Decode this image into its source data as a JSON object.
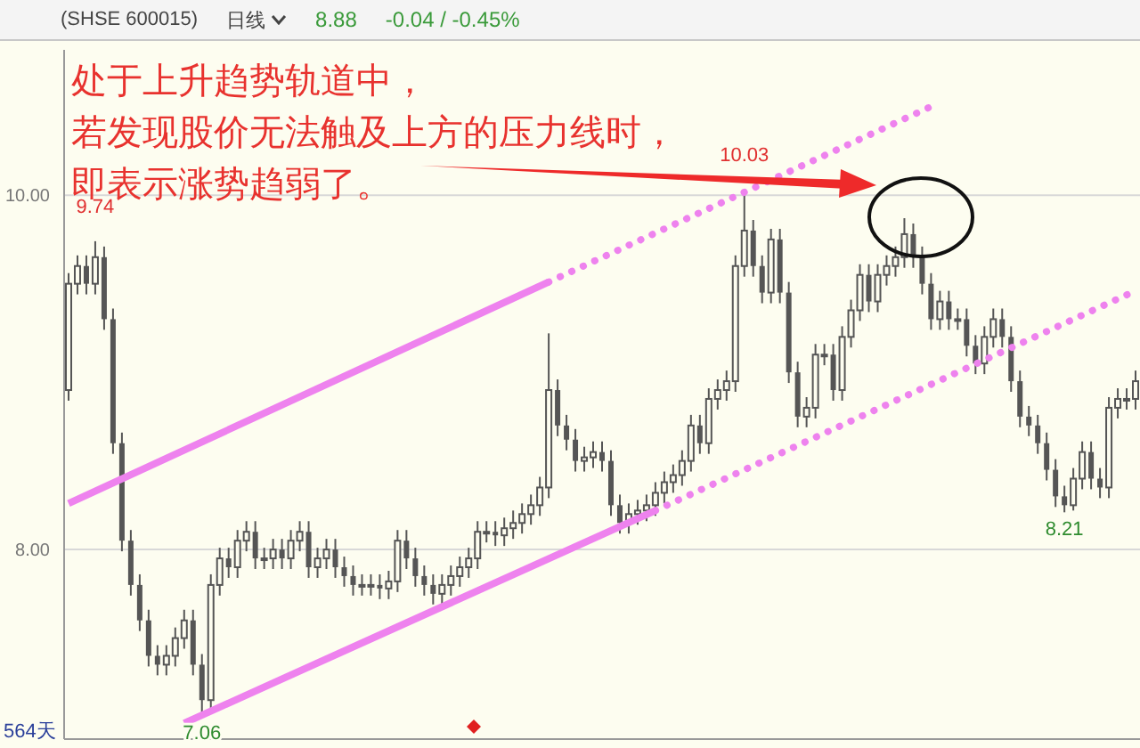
{
  "chart_data": {
    "type": "candlestick",
    "title": "(SHSE 600015)",
    "subtitle": "日线",
    "color": "#555555",
    "categories": [
      null,
      null,
      null,
      null,
      null,
      null,
      null,
      null,
      null,
      null,
      null,
      null,
      null,
      null,
      null,
      null,
      null,
      null,
      null,
      null,
      null,
      null,
      null,
      null,
      null,
      null,
      null,
      null,
      null,
      null,
      null,
      null,
      null,
      null,
      null,
      null,
      null,
      null,
      null,
      null,
      null,
      null,
      null,
      null,
      null,
      null,
      null,
      null,
      null,
      null,
      null,
      null,
      null,
      null,
      null,
      null,
      null,
      null,
      null,
      null,
      null,
      null,
      null,
      null,
      null,
      null,
      null,
      null,
      null,
      null,
      null,
      null,
      null,
      null,
      null,
      null,
      null,
      null,
      null,
      null,
      null,
      null,
      null,
      null,
      null,
      null,
      null,
      null,
      null,
      null,
      null,
      null,
      null,
      null,
      null,
      null,
      null,
      null,
      null,
      null,
      null,
      null,
      null,
      null,
      null,
      null,
      null,
      null,
      null,
      null,
      null,
      null,
      null,
      null,
      null,
      null,
      null,
      null,
      null,
      null,
      null
    ],
    "ohlc": [
      [
        8.9,
        9.56,
        8.84,
        9.5
      ],
      [
        9.5,
        9.66,
        9.44,
        9.6
      ],
      [
        9.6,
        9.66,
        9.44,
        9.5
      ],
      [
        9.5,
        9.74,
        9.44,
        9.65
      ],
      [
        9.65,
        9.71,
        9.24,
        9.3
      ],
      [
        9.3,
        9.36,
        8.54,
        8.6
      ],
      [
        8.6,
        8.66,
        7.99,
        8.05
      ],
      [
        8.05,
        8.11,
        7.74,
        7.8
      ],
      [
        7.8,
        7.86,
        7.54,
        7.6
      ],
      [
        7.6,
        7.66,
        7.34,
        7.4
      ],
      [
        7.4,
        7.46,
        7.29,
        7.35
      ],
      [
        7.35,
        7.46,
        7.29,
        7.4
      ],
      [
        7.4,
        7.56,
        7.34,
        7.5
      ],
      [
        7.5,
        7.66,
        7.44,
        7.6
      ],
      [
        7.6,
        7.66,
        7.29,
        7.35
      ],
      [
        7.35,
        7.41,
        7.06,
        7.15
      ],
      [
        7.15,
        7.86,
        7.09,
        7.8
      ],
      [
        7.8,
        8.01,
        7.74,
        7.95
      ],
      [
        7.95,
        8.01,
        7.84,
        7.9
      ],
      [
        7.9,
        8.11,
        7.84,
        8.05
      ],
      [
        8.05,
        8.16,
        7.99,
        8.1
      ],
      [
        8.1,
        8.16,
        7.89,
        7.95
      ],
      [
        7.95,
        8.01,
        7.89,
        7.95
      ],
      [
        7.95,
        8.06,
        7.89,
        8.0
      ],
      [
        8.0,
        8.06,
        7.89,
        7.95
      ],
      [
        7.95,
        8.11,
        7.89,
        8.05
      ],
      [
        8.05,
        8.16,
        7.99,
        8.1
      ],
      [
        8.1,
        8.16,
        7.84,
        7.9
      ],
      [
        7.9,
        8.01,
        7.84,
        7.95
      ],
      [
        7.95,
        8.06,
        7.89,
        8.0
      ],
      [
        8.0,
        8.06,
        7.84,
        7.9
      ],
      [
        7.9,
        7.96,
        7.79,
        7.85
      ],
      [
        7.85,
        7.91,
        7.74,
        7.8
      ],
      [
        7.8,
        7.86,
        7.74,
        7.8
      ],
      [
        7.8,
        7.86,
        7.74,
        7.8
      ],
      [
        7.8,
        7.86,
        7.72,
        7.78
      ],
      [
        7.78,
        7.88,
        7.72,
        7.82
      ],
      [
        7.82,
        8.11,
        7.76,
        8.05
      ],
      [
        8.05,
        8.11,
        7.89,
        7.95
      ],
      [
        7.95,
        8.01,
        7.79,
        7.85
      ],
      [
        7.85,
        7.91,
        7.74,
        7.8
      ],
      [
        7.8,
        7.86,
        7.69,
        7.75
      ],
      [
        7.75,
        7.86,
        7.69,
        7.8
      ],
      [
        7.8,
        7.91,
        7.74,
        7.85
      ],
      [
        7.85,
        7.96,
        7.79,
        7.9
      ],
      [
        7.9,
        8.01,
        7.84,
        7.95
      ],
      [
        7.95,
        8.16,
        7.89,
        8.1
      ],
      [
        8.1,
        8.16,
        8.04,
        8.1
      ],
      [
        8.1,
        8.16,
        8.02,
        8.08
      ],
      [
        8.08,
        8.18,
        8.02,
        8.12
      ],
      [
        8.12,
        8.22,
        8.06,
        8.15
      ],
      [
        8.15,
        8.26,
        8.09,
        8.2
      ],
      [
        8.2,
        8.31,
        8.14,
        8.25
      ],
      [
        8.25,
        8.41,
        8.19,
        8.35
      ],
      [
        8.35,
        9.22,
        8.29,
        8.9
      ],
      [
        8.9,
        8.96,
        8.64,
        8.7
      ],
      [
        8.7,
        8.76,
        8.56,
        8.62
      ],
      [
        8.62,
        8.68,
        8.44,
        8.5
      ],
      [
        8.5,
        8.58,
        8.44,
        8.52
      ],
      [
        8.52,
        8.61,
        8.46,
        8.55
      ],
      [
        8.55,
        8.61,
        8.44,
        8.5
      ],
      [
        8.5,
        8.56,
        8.19,
        8.25
      ],
      [
        8.25,
        8.31,
        8.09,
        8.15
      ],
      [
        8.15,
        8.26,
        8.09,
        8.2
      ],
      [
        8.2,
        8.28,
        8.14,
        8.22
      ],
      [
        8.22,
        8.31,
        8.16,
        8.25
      ],
      [
        8.25,
        8.38,
        8.19,
        8.32
      ],
      [
        8.32,
        8.44,
        8.26,
        8.38
      ],
      [
        8.38,
        8.48,
        8.32,
        8.42
      ],
      [
        8.42,
        8.56,
        8.36,
        8.5
      ],
      [
        8.5,
        8.76,
        8.44,
        8.7
      ],
      [
        8.7,
        8.76,
        8.54,
        8.6
      ],
      [
        8.6,
        8.91,
        8.54,
        8.85
      ],
      [
        8.85,
        8.96,
        8.79,
        8.9
      ],
      [
        8.9,
        9.01,
        8.84,
        8.95
      ],
      [
        8.95,
        9.66,
        8.89,
        9.6
      ],
      [
        9.6,
        10.03,
        9.54,
        9.8
      ],
      [
        9.8,
        9.86,
        9.54,
        9.6
      ],
      [
        9.6,
        9.66,
        9.39,
        9.45
      ],
      [
        9.45,
        9.81,
        9.39,
        9.75
      ],
      [
        9.75,
        9.81,
        9.39,
        9.45
      ],
      [
        9.45,
        9.51,
        8.94,
        9.0
      ],
      [
        9.0,
        9.06,
        8.69,
        8.75
      ],
      [
        8.75,
        8.86,
        8.69,
        8.8
      ],
      [
        8.8,
        9.16,
        8.74,
        9.1
      ],
      [
        9.1,
        9.16,
        9.04,
        9.1
      ],
      [
        9.1,
        9.16,
        8.84,
        8.9
      ],
      [
        8.9,
        9.26,
        8.84,
        9.2
      ],
      [
        9.2,
        9.41,
        9.14,
        9.35
      ],
      [
        9.35,
        9.61,
        9.29,
        9.55
      ],
      [
        9.55,
        9.61,
        9.34,
        9.4
      ],
      [
        9.4,
        9.61,
        9.34,
        9.55
      ],
      [
        9.55,
        9.66,
        9.49,
        9.6
      ],
      [
        9.6,
        9.71,
        9.54,
        9.65
      ],
      [
        9.65,
        9.87,
        9.59,
        9.78
      ],
      [
        9.78,
        9.84,
        9.59,
        9.65
      ],
      [
        9.65,
        9.71,
        9.44,
        9.5
      ],
      [
        9.5,
        9.56,
        9.24,
        9.3
      ],
      [
        9.3,
        9.46,
        9.24,
        9.4
      ],
      [
        9.4,
        9.46,
        9.24,
        9.3
      ],
      [
        9.3,
        9.36,
        9.24,
        9.3
      ],
      [
        9.3,
        9.36,
        9.09,
        9.15
      ],
      [
        9.15,
        9.21,
        8.99,
        9.05
      ],
      [
        9.05,
        9.26,
        8.99,
        9.2
      ],
      [
        9.2,
        9.36,
        9.14,
        9.3
      ],
      [
        9.3,
        9.36,
        9.14,
        9.2
      ],
      [
        9.2,
        9.26,
        8.89,
        8.95
      ],
      [
        8.95,
        9.01,
        8.69,
        8.75
      ],
      [
        8.75,
        8.81,
        8.64,
        8.7
      ],
      [
        8.7,
        8.76,
        8.54,
        8.6
      ],
      [
        8.6,
        8.66,
        8.39,
        8.45
      ],
      [
        8.45,
        8.51,
        8.24,
        8.3
      ],
      [
        8.3,
        8.36,
        8.21,
        8.25
      ],
      [
        8.25,
        8.46,
        8.22,
        8.4
      ],
      [
        8.4,
        8.61,
        8.34,
        8.55
      ],
      [
        8.55,
        8.61,
        8.34,
        8.4
      ],
      [
        8.4,
        8.46,
        8.29,
        8.35
      ],
      [
        8.35,
        8.86,
        8.29,
        8.8
      ],
      [
        8.8,
        8.91,
        8.74,
        8.85
      ],
      [
        8.85,
        8.91,
        8.79,
        8.85
      ],
      [
        8.85,
        9.01,
        8.79,
        8.95
      ]
    ],
    "series": [
      {
        "type": "line",
        "color": "#ee82ee",
        "line_style": "solid",
        "values": [
          8.26,
          null,
          null,
          null,
          null,
          null,
          null,
          null,
          null,
          null,
          null,
          null,
          null,
          null,
          null,
          null,
          null,
          null,
          null,
          null,
          null,
          null,
          null,
          null,
          null,
          null,
          null,
          null,
          null,
          null,
          null,
          null,
          null,
          null,
          null,
          null,
          null,
          null,
          null,
          null,
          null,
          null,
          null,
          null,
          null,
          null,
          null,
          null,
          null,
          null,
          null,
          null,
          null,
          null,
          9.51,
          null,
          null,
          null,
          null,
          null,
          null,
          null,
          null,
          null,
          null,
          null,
          null,
          null,
          null,
          null,
          null,
          null,
          null,
          null,
          null,
          null,
          null,
          null,
          null,
          null,
          null,
          null,
          null,
          null,
          null,
          null,
          null,
          null,
          null,
          null,
          null,
          null,
          null,
          null,
          null,
          null,
          null,
          null,
          null,
          null,
          null,
          null,
          null,
          null,
          null,
          null,
          null,
          null,
          null,
          null,
          null,
          null,
          null,
          null,
          null,
          null,
          null,
          null,
          null,
          null,
          null
        ]
      },
      {
        "type": "line",
        "color": "#ee82ee",
        "line_style": "dotted",
        "values": [
          null,
          null,
          null,
          null,
          null,
          null,
          null,
          null,
          null,
          null,
          null,
          null,
          null,
          null,
          null,
          null,
          null,
          null,
          null,
          null,
          null,
          null,
          null,
          null,
          null,
          null,
          null,
          null,
          null,
          null,
          null,
          null,
          null,
          null,
          null,
          null,
          null,
          null,
          null,
          null,
          null,
          null,
          null,
          null,
          null,
          null,
          null,
          null,
          null,
          null,
          null,
          null,
          null,
          null,
          9.51,
          null,
          null,
          null,
          null,
          null,
          null,
          null,
          null,
          null,
          null,
          null,
          null,
          null,
          null,
          null,
          null,
          null,
          null,
          null,
          null,
          null,
          null,
          null,
          null,
          null,
          null,
          null,
          null,
          null,
          null,
          null,
          null,
          null,
          null,
          null,
          null,
          null,
          null,
          null,
          null,
          null,
          null,
          10.5,
          null,
          null,
          null,
          null,
          null,
          null,
          null,
          null,
          null,
          null,
          null,
          null,
          null,
          null,
          null,
          null,
          null,
          null,
          null,
          null,
          null,
          null,
          null
        ]
      },
      {
        "type": "line",
        "color": "#ee82ee",
        "line_style": "solid",
        "values": [
          null,
          null,
          null,
          null,
          null,
          null,
          null,
          null,
          null,
          null,
          null,
          null,
          null,
          7.02,
          null,
          null,
          null,
          null,
          null,
          null,
          null,
          null,
          null,
          null,
          null,
          null,
          null,
          null,
          null,
          null,
          null,
          null,
          null,
          null,
          null,
          null,
          null,
          null,
          null,
          null,
          null,
          null,
          null,
          null,
          null,
          null,
          null,
          null,
          null,
          null,
          null,
          null,
          null,
          null,
          null,
          null,
          null,
          null,
          null,
          null,
          null,
          null,
          null,
          null,
          null,
          null,
          8.22,
          null,
          null,
          null,
          null,
          null,
          null,
          null,
          null,
          null,
          null,
          null,
          null,
          null,
          null,
          null,
          null,
          null,
          null,
          null,
          null,
          null,
          null,
          null,
          null,
          null,
          null,
          null,
          null,
          null,
          null,
          null,
          null,
          null,
          null,
          null,
          null,
          null,
          null,
          null,
          null,
          null,
          null,
          null,
          null,
          null,
          null,
          null,
          null,
          null,
          null,
          null,
          null,
          null,
          null
        ]
      },
      {
        "type": "line",
        "color": "#ee82ee",
        "line_style": "dotted",
        "values": [
          null,
          null,
          null,
          null,
          null,
          null,
          null,
          null,
          null,
          null,
          null,
          null,
          null,
          null,
          null,
          null,
          null,
          null,
          null,
          null,
          null,
          null,
          null,
          null,
          null,
          null,
          null,
          null,
          null,
          null,
          null,
          null,
          null,
          null,
          null,
          null,
          null,
          null,
          null,
          null,
          null,
          null,
          null,
          null,
          null,
          null,
          null,
          null,
          null,
          null,
          null,
          null,
          null,
          null,
          null,
          null,
          null,
          null,
          null,
          null,
          null,
          null,
          null,
          null,
          null,
          null,
          8.22,
          null,
          null,
          null,
          null,
          null,
          null,
          null,
          null,
          null,
          null,
          null,
          null,
          null,
          null,
          null,
          null,
          null,
          null,
          null,
          null,
          null,
          null,
          null,
          null,
          null,
          null,
          null,
          null,
          null,
          null,
          null,
          null,
          null,
          null,
          null,
          null,
          null,
          null,
          null,
          null,
          null,
          null,
          null,
          null,
          null,
          null,
          null,
          null,
          null,
          null,
          null,
          null,
          null,
          9.46
        ]
      }
    ],
    "ylim": [
      6.93,
      10.82
    ],
    "yticks": [
      {
        "value": 10,
        "label": "10.00"
      },
      {
        "value": 8,
        "label": "8.00"
      }
    ],
    "grid": "y",
    "tick_labels": "y",
    "annotations": [
      "处于上升趋势轨道中，",
      "若发现股价无法触及上方的压力线时，",
      "即表示涨势趋弱了。",
      "8.88",
      "-0.04 / -0.45%",
      "564天",
      {
        "text": "9.74",
        "y": 9.74
      },
      {
        "text": "10.03",
        "y": 10.03
      },
      {
        "text": "7.06",
        "y": 7.06
      },
      {
        "text": "8.21",
        "y": 8.21
      }
    ]
  }
}
